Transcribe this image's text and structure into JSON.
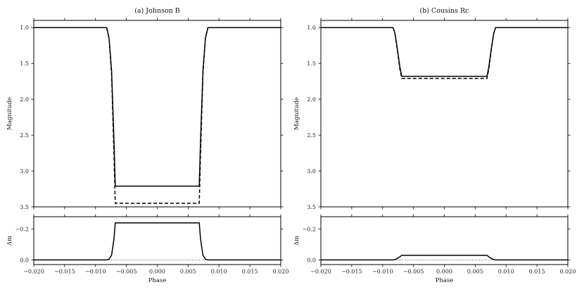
{
  "chart_data": [
    {
      "panel": "top-left",
      "type": "line",
      "title": "(a) Johnson B",
      "xlabel": "",
      "ylabel": "Magnitude",
      "xlim": [
        -0.02,
        0.02
      ],
      "ylim": [
        3.5,
        0.9
      ],
      "y_inverted": true,
      "xticks": [
        -0.02,
        -0.015,
        -0.01,
        -0.005,
        0.0,
        0.005,
        0.01,
        0.015,
        0.02
      ],
      "xticklabels": [
        "",
        "",
        "",
        "",
        "",
        "",
        "",
        "",
        ""
      ],
      "yticks": [
        1.0,
        1.5,
        2.0,
        2.5,
        3.0,
        3.5
      ],
      "yticklabels": [
        "1.0",
        "1.5",
        "2.0",
        "2.5",
        "3.0",
        "3.5"
      ],
      "series": [
        {
          "style": "solid",
          "x": [
            -0.02,
            -0.0082,
            -0.0078,
            -0.0074,
            -0.007,
            -0.0068,
            0.0068,
            0.007,
            0.0074,
            0.0078,
            0.0082,
            0.02
          ],
          "y": [
            1.0,
            1.0,
            1.15,
            1.6,
            2.6,
            3.21,
            3.21,
            2.6,
            1.6,
            1.15,
            1.0,
            1.0
          ]
        },
        {
          "style": "dashed",
          "x": [
            -0.02,
            -0.0082,
            -0.0078,
            -0.0074,
            -0.007,
            -0.0068,
            0.0068,
            0.007,
            0.0074,
            0.0078,
            0.0082,
            0.02
          ],
          "y": [
            1.0,
            1.0,
            1.15,
            1.65,
            2.8,
            3.45,
            3.45,
            2.8,
            1.65,
            1.15,
            1.0,
            1.0
          ]
        }
      ]
    },
    {
      "panel": "top-right",
      "type": "line",
      "title": "(b) Cousins Rc",
      "xlabel": "",
      "ylabel": "Magnitude",
      "xlim": [
        -0.02,
        0.02
      ],
      "ylim": [
        3.5,
        0.9
      ],
      "y_inverted": true,
      "xticks": [
        -0.02,
        -0.015,
        -0.01,
        -0.005,
        0.0,
        0.005,
        0.01,
        0.015,
        0.02
      ],
      "xticklabels": [
        "",
        "",
        "",
        "",
        "",
        "",
        "",
        "",
        ""
      ],
      "yticks": [
        1.0,
        1.5,
        2.0,
        2.5,
        3.0,
        3.5
      ],
      "yticklabels": [
        "1.0",
        "1.5",
        "2.0",
        "2.5",
        "3.0",
        "3.5"
      ],
      "series": [
        {
          "style": "solid",
          "x": [
            -0.02,
            -0.0083,
            -0.008,
            -0.0076,
            -0.0072,
            -0.0069,
            0.0069,
            0.0072,
            0.0076,
            0.008,
            0.0083,
            0.02
          ],
          "y": [
            1.0,
            1.0,
            1.08,
            1.3,
            1.55,
            1.68,
            1.68,
            1.55,
            1.3,
            1.08,
            1.0,
            1.0
          ]
        },
        {
          "style": "dashed",
          "x": [
            -0.02,
            -0.0083,
            -0.008,
            -0.0076,
            -0.0072,
            -0.0069,
            0.0069,
            0.0072,
            0.0076,
            0.008,
            0.0083,
            0.02
          ],
          "y": [
            1.0,
            1.0,
            1.08,
            1.32,
            1.58,
            1.71,
            1.71,
            1.58,
            1.32,
            1.08,
            1.0,
            1.0
          ]
        }
      ]
    },
    {
      "panel": "bottom-left",
      "type": "line",
      "title": "",
      "xlabel": "Phase",
      "ylabel": "Δm",
      "xlim": [
        -0.02,
        0.02
      ],
      "ylim": [
        0.03,
        -0.28
      ],
      "y_inverted": true,
      "xticks": [
        -0.02,
        -0.015,
        -0.01,
        -0.005,
        0.0,
        0.005,
        0.01,
        0.015,
        0.02
      ],
      "xticklabels": [
        "−0.020",
        "−0.015",
        "−0.010",
        "−0.005",
        "0.000",
        "0.005",
        "0.010",
        "0.015",
        "0.020"
      ],
      "yticks": [
        -0.2,
        0.0
      ],
      "yticklabels": [
        "−0.2",
        "0.0"
      ],
      "series": [
        {
          "style": "solid",
          "x": [
            -0.02,
            -0.0082,
            -0.0078,
            -0.0074,
            -0.007,
            -0.0068,
            0.0068,
            0.007,
            0.0074,
            0.0078,
            0.0082,
            0.02
          ],
          "y": [
            0.0,
            0.0,
            -0.005,
            -0.03,
            -0.14,
            -0.24,
            -0.24,
            -0.14,
            -0.03,
            -0.005,
            0.0,
            0.0
          ]
        },
        {
          "style": "dotted",
          "x": [
            -0.02,
            0.02
          ],
          "y": [
            0.0,
            0.0
          ]
        }
      ]
    },
    {
      "panel": "bottom-right",
      "type": "line",
      "title": "",
      "xlabel": "Phase",
      "ylabel": "Δm",
      "xlim": [
        -0.02,
        0.02
      ],
      "ylim": [
        0.03,
        -0.28
      ],
      "y_inverted": true,
      "xticks": [
        -0.02,
        -0.015,
        -0.01,
        -0.005,
        0.0,
        0.005,
        0.01,
        0.015,
        0.02
      ],
      "xticklabels": [
        "−0.020",
        "−0.015",
        "−0.010",
        "−0.005",
        "0.000",
        "0.005",
        "0.010",
        "0.015",
        "0.020"
      ],
      "yticks": [
        -0.2,
        0.0
      ],
      "yticklabels": [
        "−0.2",
        "0.0"
      ],
      "series": [
        {
          "style": "solid",
          "x": [
            -0.02,
            -0.0083,
            -0.0078,
            -0.0072,
            -0.0069,
            0.0069,
            0.0072,
            0.0078,
            0.0083,
            0.02
          ],
          "y": [
            0.0,
            0.0,
            -0.005,
            -0.02,
            -0.03,
            -0.03,
            -0.02,
            -0.005,
            0.0,
            0.0
          ]
        },
        {
          "style": "dotted",
          "x": [
            -0.02,
            0.02
          ],
          "y": [
            0.0,
            0.0
          ]
        }
      ]
    }
  ]
}
